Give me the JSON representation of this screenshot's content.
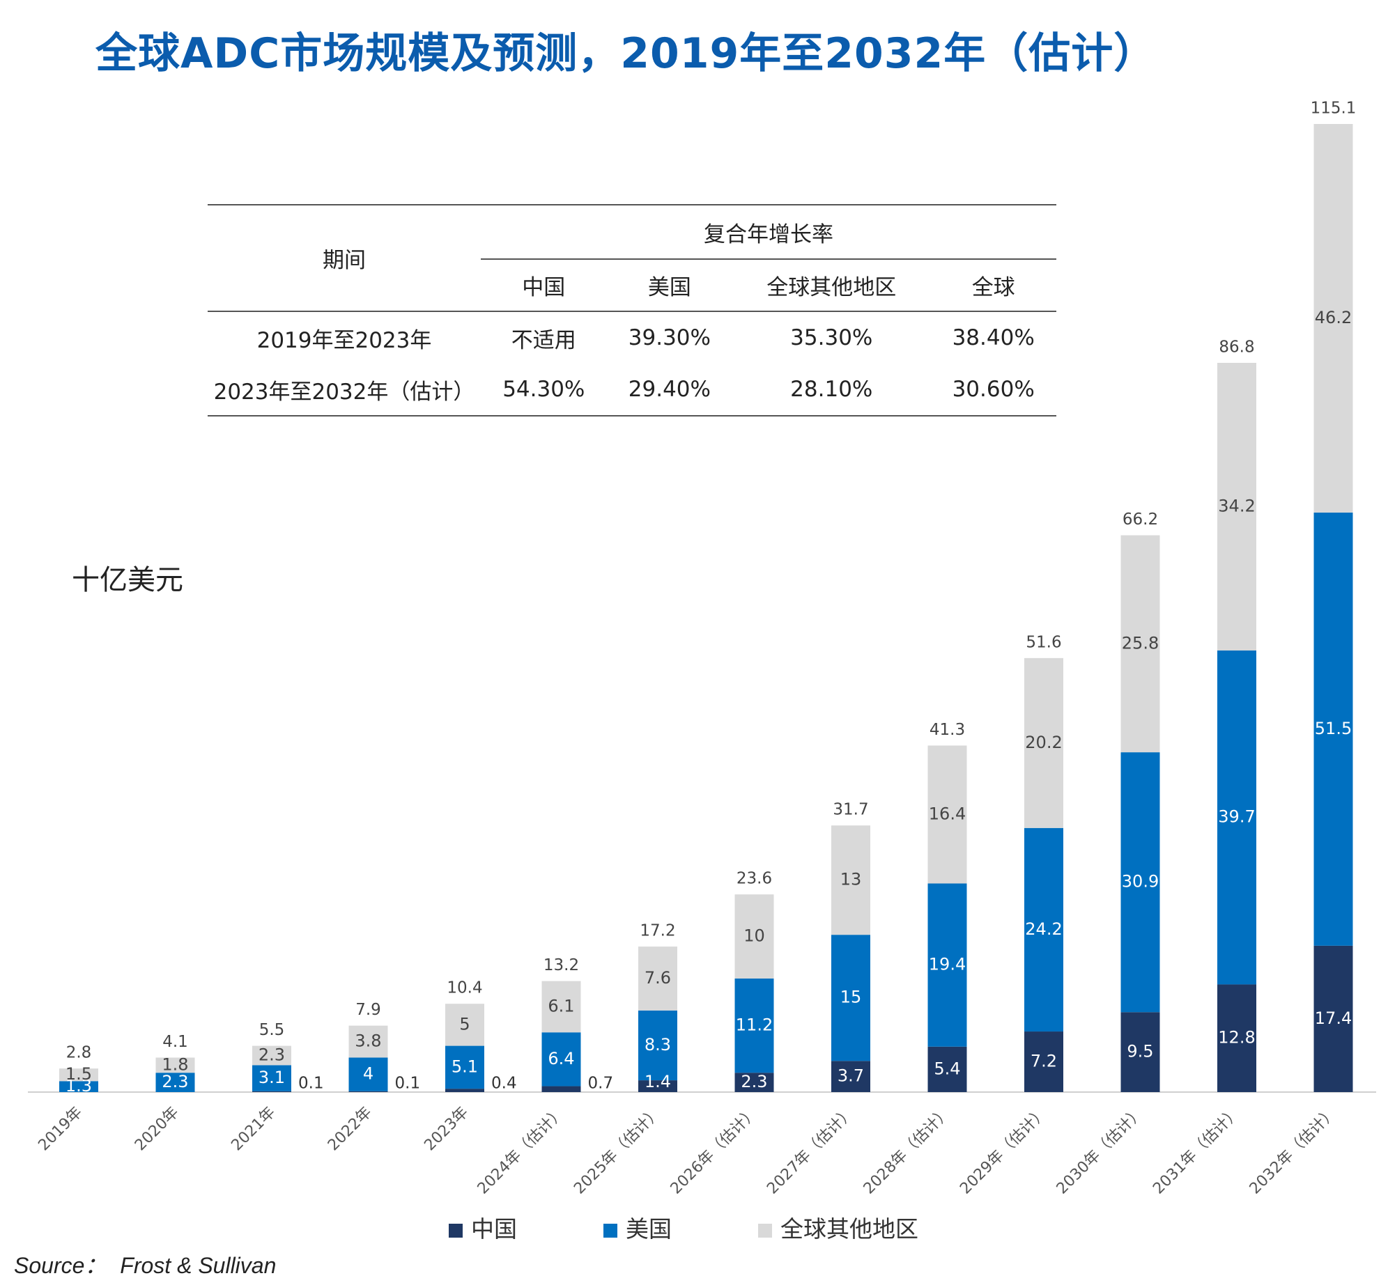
{
  "title": "全球ADC市场规模及预测，2019年至2032年（估计）",
  "unit_label": "十亿美元",
  "source_label": "Source：",
  "source_value": "Frost & Sullivan",
  "cagr_table": {
    "period_header": "期间",
    "group_header": "复合年增长率",
    "columns": [
      "中国",
      "美国",
      "全球其他地区",
      "全球"
    ],
    "rows": [
      {
        "period": "2019年至2023年",
        "values": [
          "不适用",
          "39.30%",
          "35.30%",
          "38.40%"
        ]
      },
      {
        "period": "2023年至2032年（估计）",
        "values": [
          "54.30%",
          "29.40%",
          "28.10%",
          "30.60%"
        ]
      }
    ]
  },
  "colors": {
    "china": "#1f3864",
    "usa": "#0070c0",
    "row": "#d9d9d9"
  },
  "legend": [
    "中国",
    "美国",
    "全球其他地区"
  ],
  "chart_data": {
    "type": "bar",
    "stacked": true,
    "categories": [
      "2019年",
      "2020年",
      "2021年",
      "2022年",
      "2023年",
      "2024年（估计）",
      "2025年（估计）",
      "2026年（估计）",
      "2027年（估计）",
      "2028年（估计）",
      "2029年（估计）",
      "2030年（估计）",
      "2031年（估计）",
      "2032年（估计）"
    ],
    "series": [
      {
        "name": "中国",
        "values": [
          0,
          0,
          0.1,
          0.1,
          0.4,
          0.7,
          1.4,
          2.3,
          3.7,
          5.4,
          7.2,
          9.5,
          12.8,
          17.4
        ]
      },
      {
        "name": "美国",
        "values": [
          1.3,
          2.3,
          3.1,
          4,
          5.1,
          6.4,
          8.3,
          11.2,
          15,
          19.4,
          24.2,
          30.9,
          39.7,
          51.5
        ]
      },
      {
        "name": "全球其他地区",
        "values": [
          1.5,
          1.8,
          2.3,
          3.8,
          5,
          6.1,
          7.6,
          10,
          13,
          16.4,
          20.2,
          25.8,
          34.2,
          46.2
        ]
      }
    ],
    "labels": {
      "china": [
        "",
        "",
        "0.1",
        "0.1",
        "0.4",
        "0.7",
        "1.4",
        "2.3",
        "3.7",
        "5.4",
        "7.2",
        "9.5",
        "12.8",
        "17.4"
      ],
      "usa": [
        "1.3",
        "2.3",
        "3.1",
        "4",
        "5.1",
        "6.4",
        "8.3",
        "11.2",
        "15",
        "19.4",
        "24.2",
        "30.9",
        "39.7",
        "51.5"
      ],
      "row": [
        "1.5",
        "1.8",
        "2.3",
        "3.8",
        "5",
        "6.1",
        "7.6",
        "10",
        "13",
        "16.4",
        "20.2",
        "25.8",
        "34.2",
        "46.2"
      ]
    },
    "totals": [
      "2.8",
      "4.1",
      "5.5",
      "7.9",
      "10.4",
      "13.2",
      "17.2",
      "23.6",
      "31.7",
      "41.3",
      "51.6",
      "66.2",
      "86.8",
      "115.1"
    ],
    "ylim": [
      0,
      115.1
    ],
    "grid": false
  }
}
